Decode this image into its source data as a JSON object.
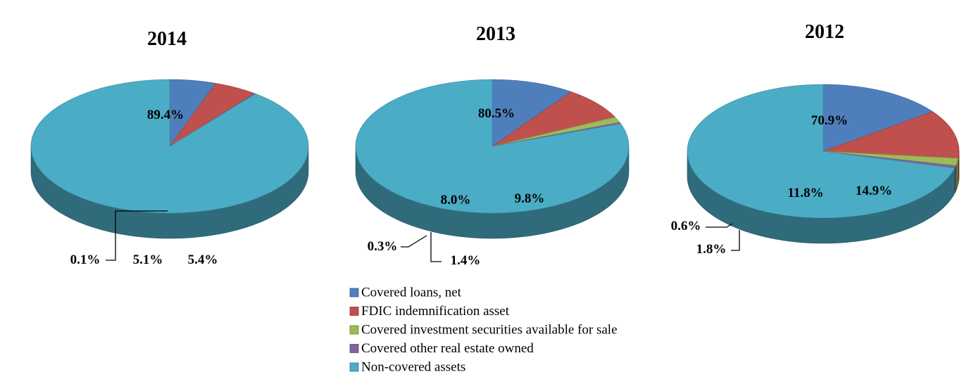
{
  "chart_data": {
    "type": "pie",
    "style": "3d",
    "legend_position": "bottom",
    "categories": [
      "Covered loans, net",
      "FDIC indemnification asset",
      "Covered investment securities available for sale",
      "Covered other real estate owned",
      "Non-covered assets"
    ],
    "colors": [
      "#4E7FBC",
      "#C0504D",
      "#9BBB59",
      "#8064A2",
      "#4BACC6"
    ],
    "charts": [
      {
        "title": "2014",
        "values": [
          5.4,
          5.1,
          0.0,
          0.1,
          89.4
        ],
        "labels": [
          "5.4%",
          "5.1%",
          "",
          "0.1%",
          "89.4%"
        ]
      },
      {
        "title": "2013",
        "values": [
          9.8,
          8.0,
          1.4,
          0.3,
          80.5
        ],
        "labels": [
          "9.8%",
          "8.0%",
          "1.4%",
          "0.3%",
          "80.5%"
        ]
      },
      {
        "title": "2012",
        "values": [
          14.9,
          11.8,
          1.8,
          0.6,
          70.9
        ],
        "labels": [
          "14.9%",
          "11.8%",
          "1.8%",
          "0.6%",
          "70.9%"
        ]
      }
    ]
  }
}
